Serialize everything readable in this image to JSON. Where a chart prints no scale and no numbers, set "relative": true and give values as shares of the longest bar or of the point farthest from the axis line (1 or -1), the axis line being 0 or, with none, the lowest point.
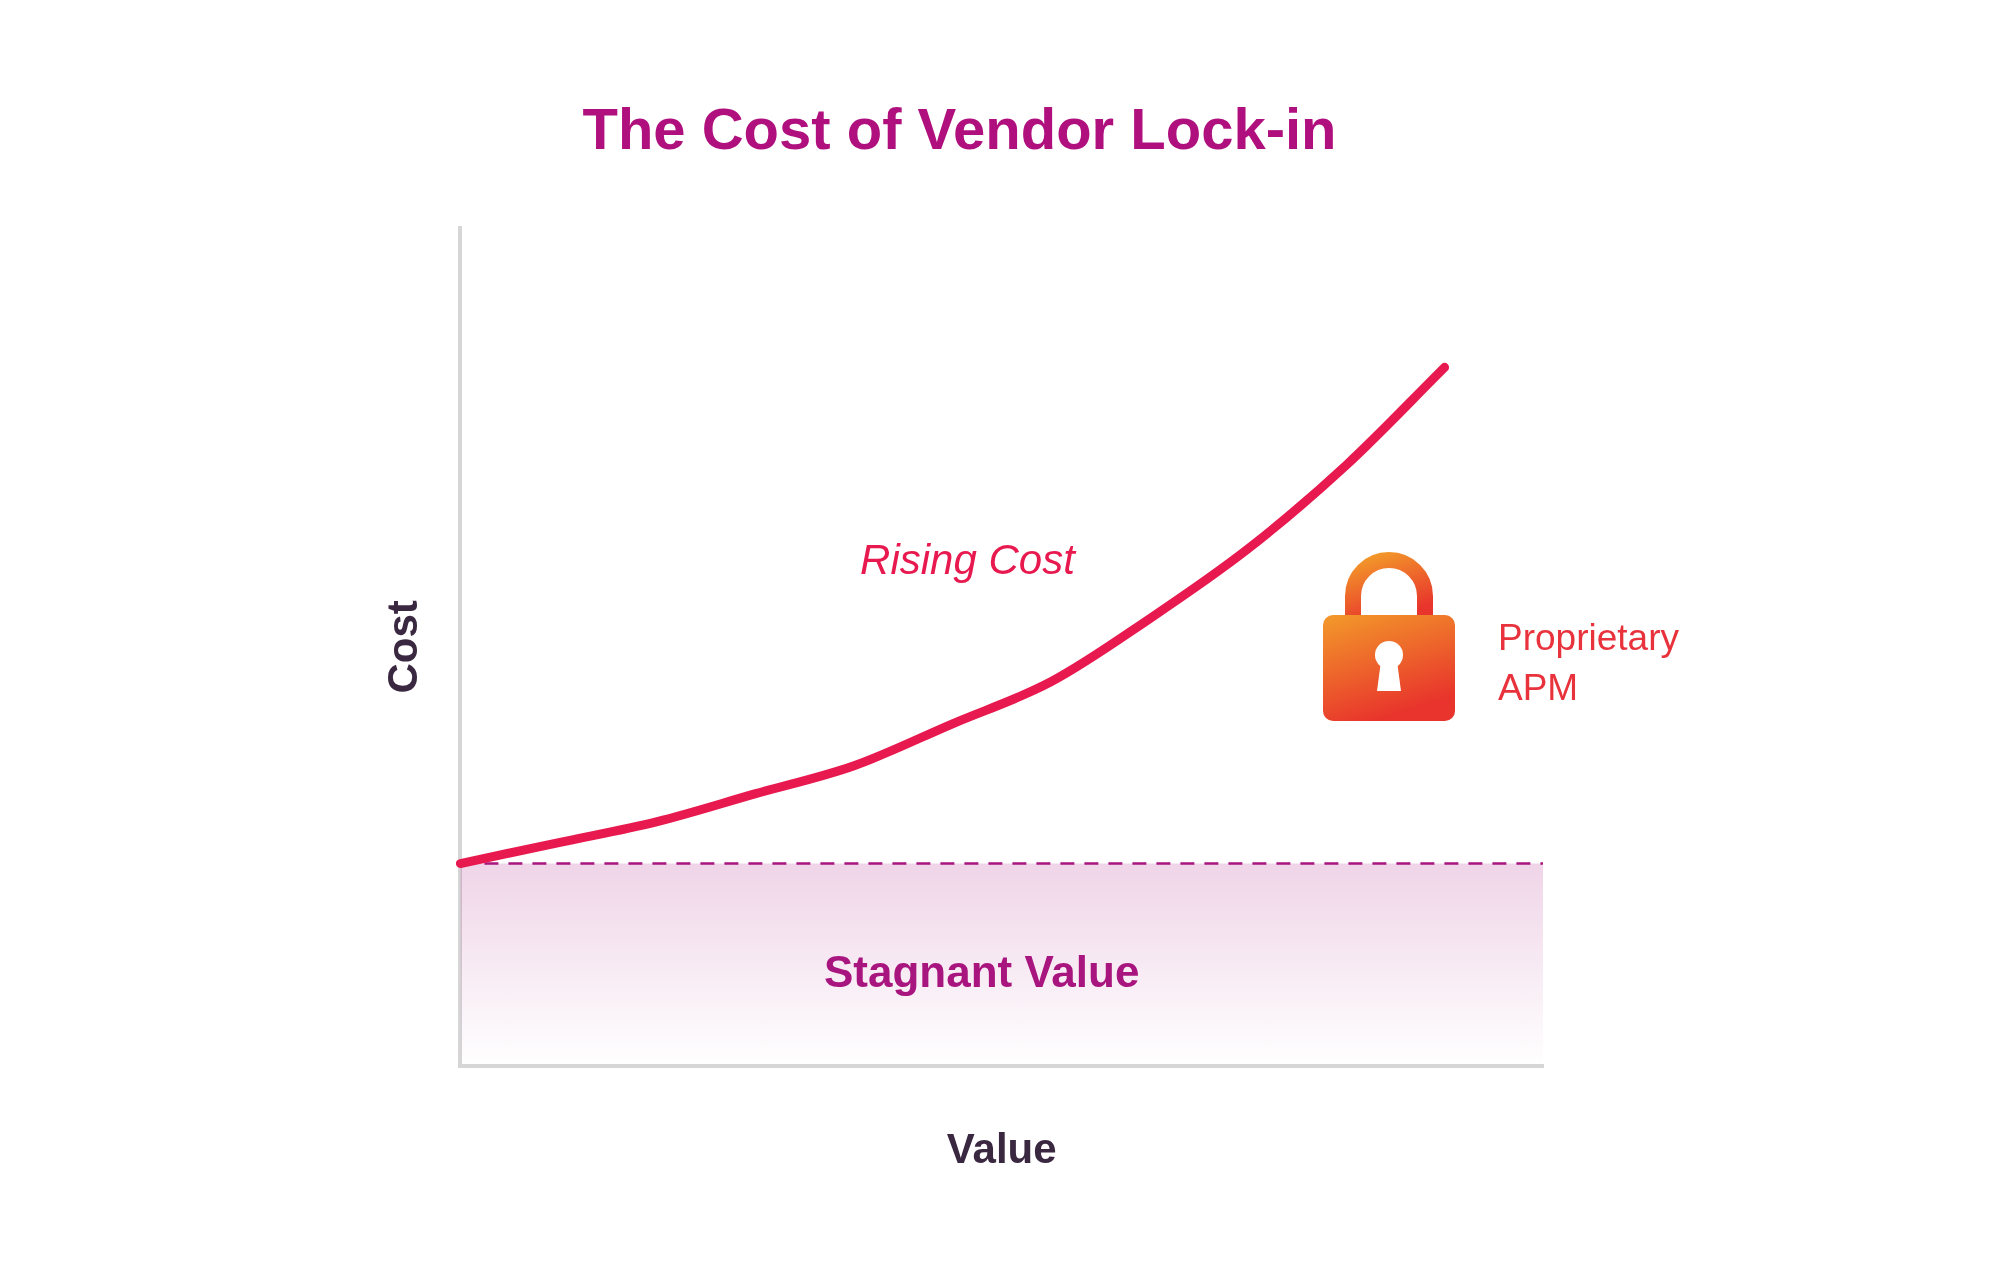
{
  "chart_data": {
    "type": "line",
    "title": "The Cost of Vendor Lock-in",
    "xlabel": "Value",
    "ylabel": "Cost",
    "relative": true,
    "categories": [
      null,
      null,
      null,
      null,
      null,
      null,
      null,
      null,
      null,
      null,
      null,
      null
    ],
    "series": [
      {
        "name": "Rising Cost",
        "color": "#e8194f",
        "values": [
          0.29,
          0.32,
          0.35,
          0.39,
          0.43,
          0.49,
          0.55,
          0.64,
          0.74,
          0.86,
          1,
          null
        ]
      }
    ],
    "ref_lines": [
      {
        "axis": "y",
        "value": 0.29,
        "color": "#a8157e",
        "line_style": "dashed"
      }
    ],
    "bands": [
      {
        "axis": "y",
        "from": 0,
        "to": 0.29,
        "label": "Stagnant Value",
        "color": "#a8157e"
      }
    ],
    "annotations": [
      "Proprietary APM"
    ],
    "legend": false,
    "grid": false,
    "marker": "none",
    "line_style": "solid"
  }
}
